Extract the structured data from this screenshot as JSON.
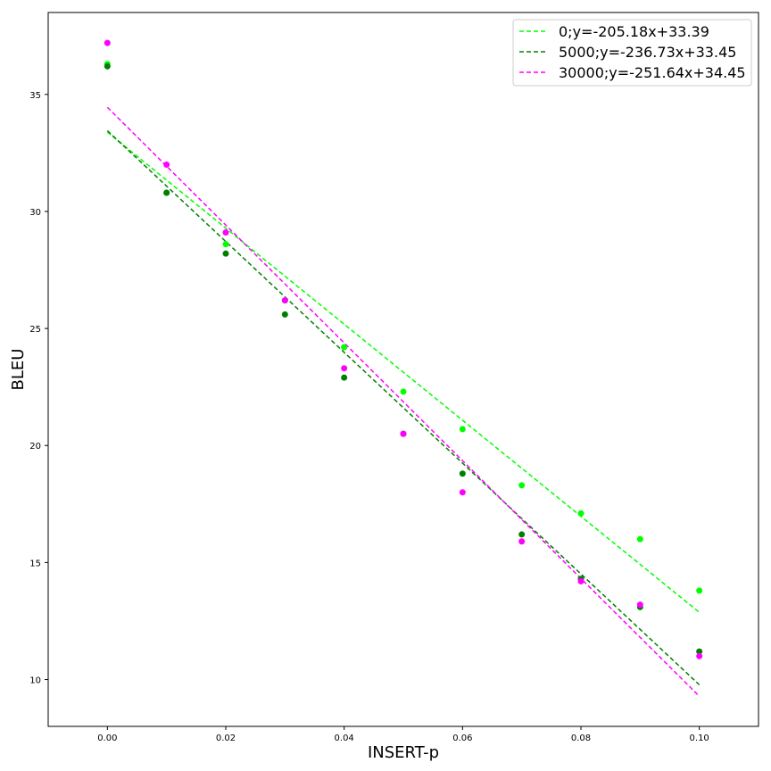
{
  "chart_data": {
    "type": "scatter",
    "xlabel": "INSERT-p",
    "ylabel": "BLEU",
    "xlim": [
      -0.01,
      0.11
    ],
    "ylim": [
      8,
      38.5
    ],
    "xticks": [
      0.0,
      0.02,
      0.04,
      0.06,
      0.08,
      0.1
    ],
    "xtick_labels": [
      "0.00",
      "0.02",
      "0.04",
      "0.06",
      "0.08",
      "0.10"
    ],
    "yticks": [
      10,
      15,
      20,
      25,
      30,
      35
    ],
    "ytick_labels": [
      "10",
      "15",
      "20",
      "25",
      "30",
      "35"
    ],
    "grid": false,
    "legend_position": "top-right",
    "x": [
      0.0,
      0.01,
      0.02,
      0.03,
      0.04,
      0.05,
      0.06,
      0.07,
      0.08,
      0.09,
      0.1
    ],
    "series": [
      {
        "name": "0;y=-205.18x+33.39",
        "color": "#00ff00",
        "slope": -205.18,
        "intercept": 33.39,
        "values": [
          36.3,
          30.8,
          28.6,
          26.2,
          24.2,
          22.3,
          20.7,
          18.3,
          17.1,
          16.0,
          13.8
        ]
      },
      {
        "name": "5000;y=-236.73x+33.45",
        "color": "#008000",
        "slope": -236.73,
        "intercept": 33.45,
        "values": [
          36.2,
          30.8,
          28.2,
          25.6,
          22.9,
          20.5,
          18.8,
          16.2,
          14.3,
          13.1,
          11.2
        ]
      },
      {
        "name": "30000;y=-251.64x+34.45",
        "color": "#ff00ff",
        "slope": -251.64,
        "intercept": 34.45,
        "values": [
          37.2,
          32.0,
          29.1,
          26.2,
          23.3,
          20.5,
          18.0,
          15.9,
          14.2,
          13.2,
          11.0
        ]
      }
    ]
  }
}
